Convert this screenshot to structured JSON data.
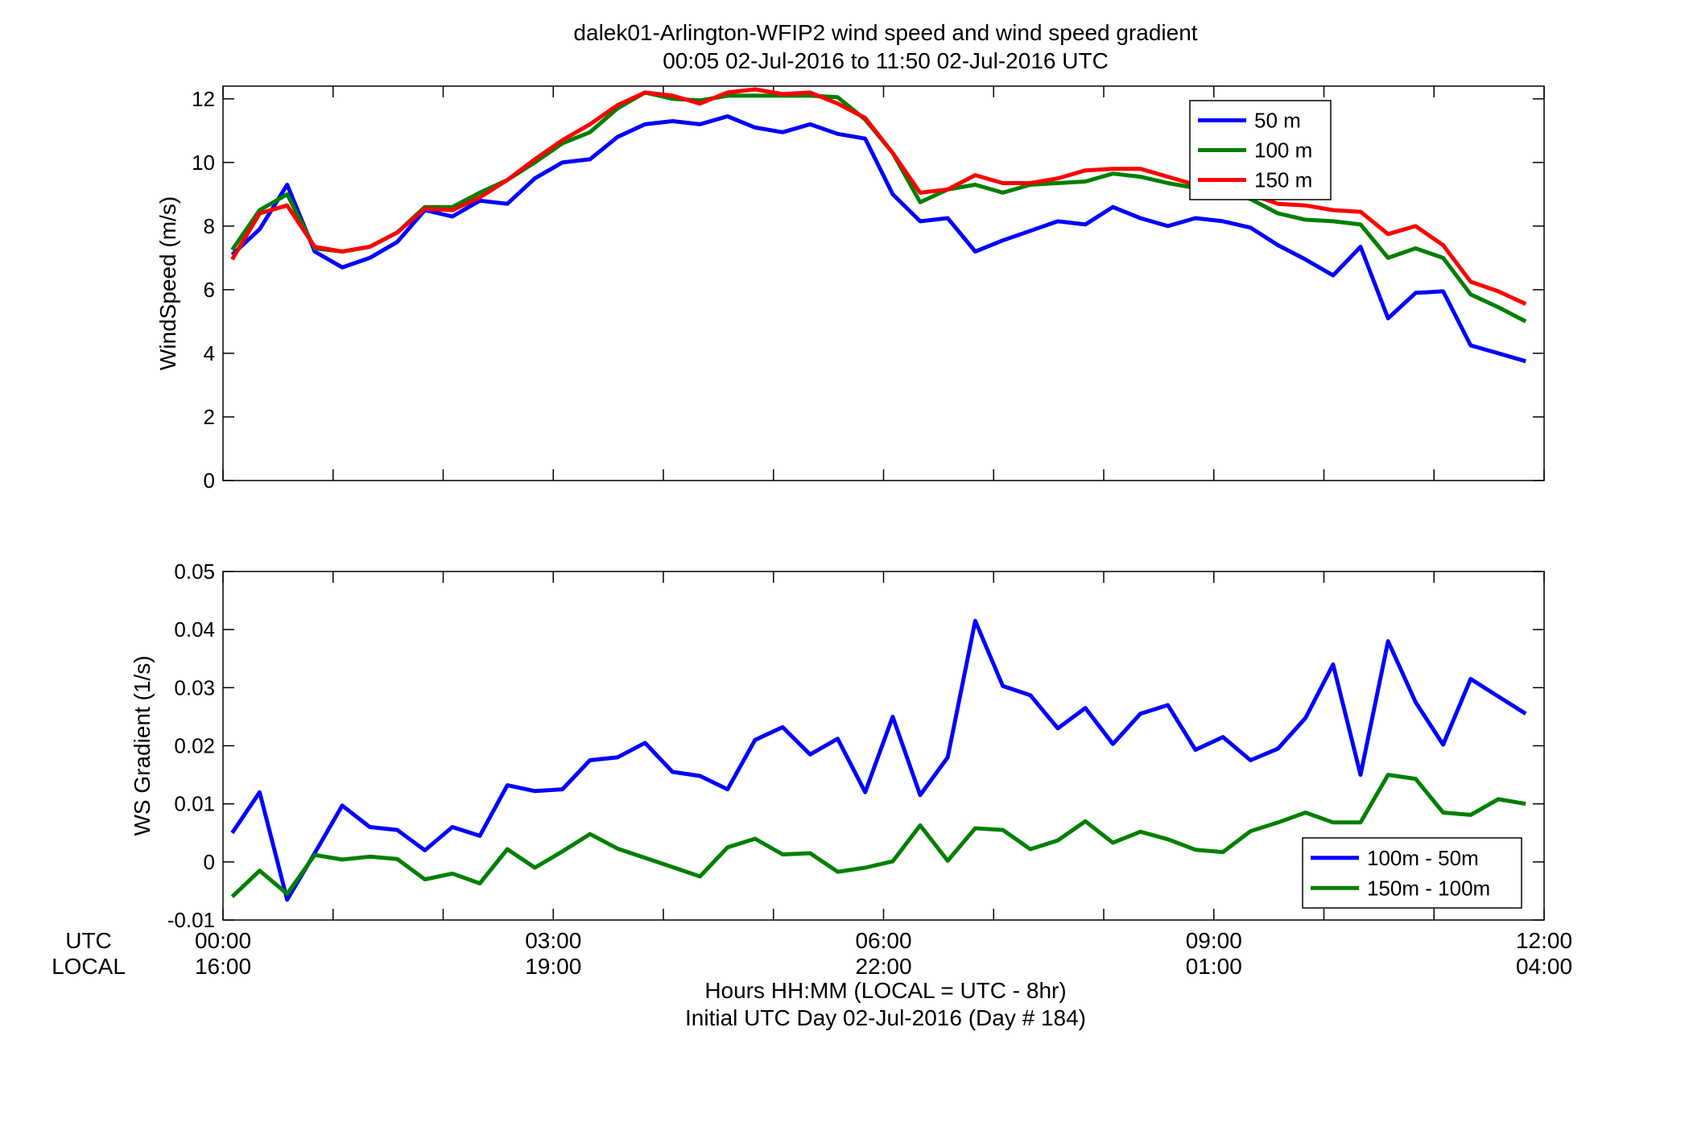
{
  "figure": {
    "title_line1": "dalek01-Arlington-WFIP2  wind speed and wind speed gradient",
    "title_line2": "00:05 02-Jul-2016 to 11:50 02-Jul-2016  UTC",
    "xlabel_line1": "Hours HH:MM  (LOCAL = UTC - 8hr)",
    "xlabel_line2": "Initial UTC Day 02-Jul-2016 (Day # 184)",
    "row_label_utc": "UTC",
    "row_label_local": "LOCAL"
  },
  "chart_data": [
    {
      "type": "line",
      "ylabel": "WindSpeed (m/s)",
      "xlim": [
        0,
        12
      ],
      "ylim": [
        0,
        12.4
      ],
      "yticks": [
        "0",
        "2",
        "4",
        "6",
        "8",
        "10",
        "12"
      ],
      "legend": "top-right",
      "grid": false,
      "x": [
        0.083,
        0.333,
        0.583,
        0.833,
        1.083,
        1.333,
        1.583,
        1.833,
        2.083,
        2.333,
        2.583,
        2.833,
        3.083,
        3.333,
        3.583,
        3.833,
        4.083,
        4.333,
        4.583,
        4.833,
        5.083,
        5.333,
        5.583,
        5.833,
        6.083,
        6.333,
        6.583,
        6.833,
        7.083,
        7.333,
        7.583,
        7.833,
        8.083,
        8.333,
        8.583,
        8.833,
        9.083,
        9.333,
        9.583,
        9.833,
        10.083,
        10.333,
        10.583,
        10.833,
        11.083,
        11.333,
        11.583,
        11.833
      ],
      "series": [
        {
          "name": "50 m",
          "color": "#0000ff",
          "values": [
            7.1,
            7.9,
            9.3,
            7.2,
            6.7,
            7.0,
            7.5,
            8.5,
            8.3,
            8.8,
            8.7,
            9.5,
            10.0,
            10.1,
            10.8,
            11.2,
            11.3,
            11.2,
            11.45,
            11.1,
            10.95,
            11.2,
            10.9,
            10.75,
            9.0,
            8.15,
            8.25,
            7.2,
            7.55,
            7.85,
            8.15,
            8.05,
            8.6,
            8.25,
            8.0,
            8.25,
            8.15,
            7.95,
            7.4,
            6.95,
            6.45,
            7.35,
            5.1,
            5.9,
            5.95,
            4.25,
            4.0,
            3.75
          ]
        },
        {
          "name": "100 m",
          "color": "#007f00",
          "values": [
            7.25,
            8.5,
            9.0,
            7.3,
            7.2,
            7.35,
            7.8,
            8.6,
            8.6,
            9.05,
            9.45,
            10.0,
            10.6,
            10.95,
            11.7,
            12.2,
            12.0,
            11.95,
            12.1,
            12.1,
            12.1,
            12.1,
            12.05,
            11.35,
            10.3,
            8.75,
            9.15,
            9.3,
            9.05,
            9.3,
            9.35,
            9.4,
            9.65,
            9.55,
            9.35,
            9.2,
            9.1,
            8.85,
            8.4,
            8.2,
            8.15,
            8.05,
            7.0,
            7.3,
            7.0,
            5.85,
            5.45,
            5.0
          ]
        },
        {
          "name": "150 m",
          "color": "#ff0000",
          "values": [
            6.95,
            8.4,
            8.65,
            7.35,
            7.2,
            7.35,
            7.8,
            8.55,
            8.5,
            8.9,
            9.45,
            10.1,
            10.7,
            11.2,
            11.8,
            12.2,
            12.1,
            11.85,
            12.2,
            12.3,
            12.15,
            12.2,
            11.85,
            11.4,
            10.3,
            9.05,
            9.15,
            9.6,
            9.35,
            9.35,
            9.5,
            9.75,
            9.8,
            9.8,
            9.55,
            9.3,
            9.2,
            9.0,
            8.7,
            8.65,
            8.5,
            8.45,
            7.75,
            8.0,
            7.4,
            6.25,
            5.95,
            5.55
          ]
        }
      ]
    },
    {
      "type": "line",
      "ylabel": "WS Gradient (1/s)",
      "xlim": [
        0,
        12
      ],
      "ylim": [
        -0.01,
        0.05
      ],
      "yticks": [
        "-0.01",
        "0",
        "0.01",
        "0.02",
        "0.03",
        "0.04",
        "0.05"
      ],
      "legend": "bottom-right",
      "grid": false,
      "x": [
        0.083,
        0.333,
        0.583,
        0.833,
        1.083,
        1.333,
        1.583,
        1.833,
        2.083,
        2.333,
        2.583,
        2.833,
        3.083,
        3.333,
        3.583,
        3.833,
        4.083,
        4.333,
        4.583,
        4.833,
        5.083,
        5.333,
        5.583,
        5.833,
        6.083,
        6.333,
        6.583,
        6.833,
        7.083,
        7.333,
        7.583,
        7.833,
        8.083,
        8.333,
        8.583,
        8.833,
        9.083,
        9.333,
        9.583,
        9.833,
        10.083,
        10.333,
        10.583,
        10.833,
        11.083,
        11.333,
        11.583,
        11.833
      ],
      "series": [
        {
          "name": "100m - 50m",
          "color": "#0000ff",
          "values": [
            0.005,
            0.012,
            -0.0065,
            0.0015,
            0.0097,
            0.006,
            0.0055,
            0.002,
            0.006,
            0.0045,
            0.0132,
            0.0122,
            0.0125,
            0.0175,
            0.018,
            0.0205,
            0.0155,
            0.0148,
            0.0125,
            0.021,
            0.0232,
            0.0185,
            0.0212,
            0.012,
            0.025,
            0.0115,
            0.018,
            0.0415,
            0.0303,
            0.0287,
            0.023,
            0.0265,
            0.0203,
            0.0255,
            0.027,
            0.0193,
            0.0215,
            0.0175,
            0.0195,
            0.0248,
            0.034,
            0.015,
            0.038,
            0.0275,
            0.0202,
            0.0315,
            0.0285,
            0.0255
          ]
        },
        {
          "name": "150m - 100m",
          "color": "#007f00",
          "values": [
            -0.006,
            -0.0015,
            -0.0055,
            0.0012,
            0.0004,
            0.0009,
            0.0005,
            -0.003,
            -0.002,
            -0.0037,
            0.0022,
            -0.001,
            0.0018,
            0.0048,
            0.0023,
            0.0007,
            -0.0009,
            -0.0025,
            0.0025,
            0.004,
            0.0013,
            0.0015,
            -0.0017,
            -0.001,
            0.0001,
            0.0063,
            0.0002,
            0.0058,
            0.0055,
            0.0022,
            0.0037,
            0.007,
            0.0033,
            0.0052,
            0.0039,
            0.0021,
            0.0017,
            0.0053,
            0.0068,
            0.0085,
            0.0068,
            0.0068,
            0.015,
            0.0143,
            0.0085,
            0.0081,
            0.0108,
            0.01
          ]
        }
      ]
    }
  ],
  "x_axis": {
    "utc_ticks": [
      "00:00",
      "03:00",
      "06:00",
      "09:00",
      "12:00"
    ],
    "local_ticks": [
      "16:00",
      "19:00",
      "22:00",
      "01:00",
      "04:00"
    ]
  }
}
